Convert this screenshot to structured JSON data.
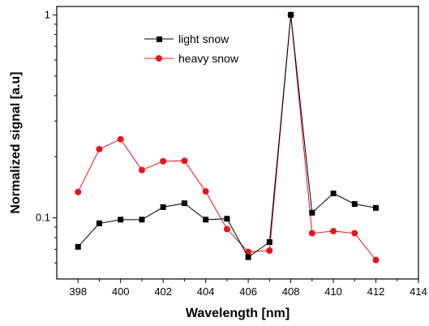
{
  "chart_data": {
    "type": "line",
    "title": "",
    "xlabel": "Wavelength [nm]",
    "ylabel": "Normalized signal [a.u]",
    "xlim": [
      397,
      414
    ],
    "ylim": [
      0.05,
      1.1
    ],
    "yscale": "log",
    "x_ticks": [
      398,
      400,
      402,
      404,
      406,
      408,
      410,
      412,
      414
    ],
    "x_tick_labels": [
      "398",
      "400",
      "402",
      "404",
      "406",
      "408",
      "410",
      "412",
      "414"
    ],
    "y_ticks": [
      0.1,
      1
    ],
    "y_tick_labels": [
      "0.1",
      "1"
    ],
    "grid": false,
    "legend_position": "top-left",
    "x": [
      398,
      399,
      400,
      401,
      402,
      403,
      404,
      405,
      406,
      407,
      408,
      409,
      410,
      411,
      412
    ],
    "series": [
      {
        "name": "light snow",
        "color": "#000000",
        "marker": "square",
        "values": [
          0.072,
          0.094,
          0.098,
          0.098,
          0.113,
          0.118,
          0.098,
          0.099,
          0.064,
          0.076,
          1.0,
          0.106,
          0.132,
          0.117,
          0.112
        ]
      },
      {
        "name": "heavy snow",
        "color": "#e8141b",
        "marker": "circle",
        "values": [
          0.134,
          0.218,
          0.244,
          0.172,
          0.19,
          0.191,
          0.135,
          0.088,
          0.068,
          0.069,
          1.0,
          0.084,
          0.086,
          0.084,
          0.062
        ]
      }
    ]
  }
}
